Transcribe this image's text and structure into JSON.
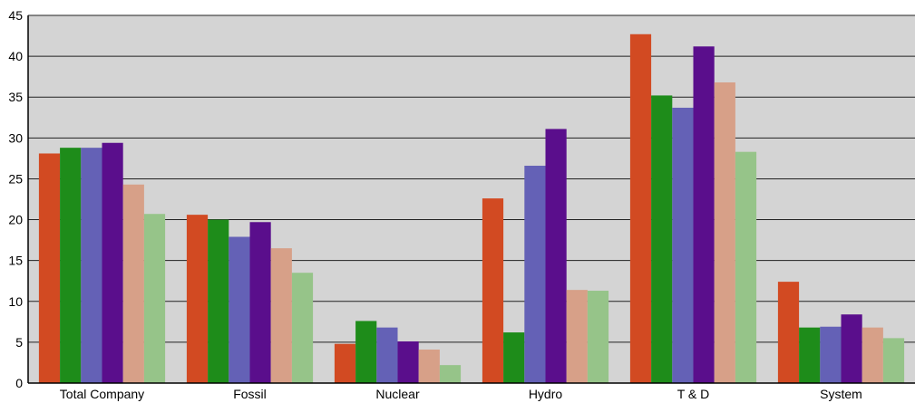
{
  "chart_data": {
    "type": "bar",
    "categories": [
      "Total Company",
      "Fossil",
      "Nuclear",
      "Hydro",
      "T & D",
      "System"
    ],
    "series": [
      {
        "color": "#d24a22",
        "values": [
          28.1,
          20.6,
          4.8,
          22.6,
          42.7,
          12.4
        ]
      },
      {
        "color": "#1e8c1a",
        "values": [
          28.8,
          20.0,
          7.6,
          6.2,
          35.2,
          6.8
        ]
      },
      {
        "color": "#6461b6",
        "values": [
          28.8,
          17.9,
          6.8,
          26.6,
          33.7,
          6.9
        ]
      },
      {
        "color": "#5a0e8c",
        "values": [
          29.4,
          19.7,
          5.1,
          31.1,
          41.2,
          8.4
        ]
      },
      {
        "color": "#d7a088",
        "values": [
          24.3,
          16.5,
          4.1,
          11.4,
          36.8,
          6.8
        ]
      },
      {
        "color": "#96c489",
        "values": [
          20.7,
          13.5,
          2.2,
          11.3,
          28.3,
          5.5
        ]
      }
    ],
    "y_ticks": [
      "0",
      "5",
      "10",
      "15",
      "20",
      "25",
      "30",
      "35",
      "40",
      "45"
    ],
    "ylim": [
      0,
      45
    ],
    "grid": true,
    "plot_background": "#d4d4d4"
  }
}
